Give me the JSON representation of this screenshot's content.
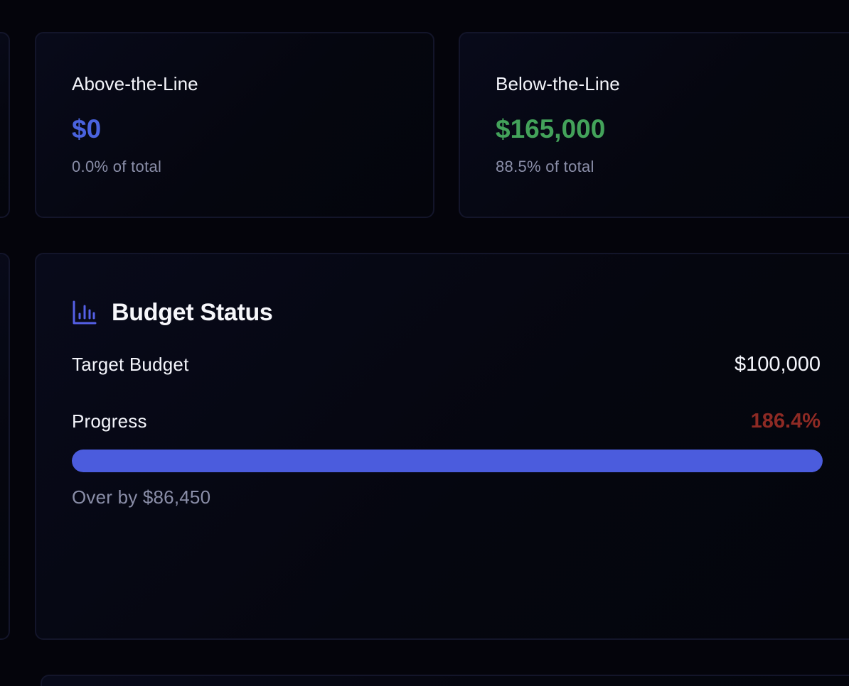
{
  "above_the_line": {
    "label": "Above-the-Line",
    "value": "$0",
    "share": "0.0% of total",
    "accent_color": "#4a63df"
  },
  "below_the_line": {
    "label": "Below-the-Line",
    "value": "$165,000",
    "share": "88.5% of total",
    "accent_color": "#43a25a"
  },
  "budget_status": {
    "icon": "bar-chart-icon",
    "title": "Budget Status",
    "target_label": "Target Budget",
    "target_value": "$100,000",
    "progress_label": "Progress",
    "progress_value": "186.4%",
    "progress_fill_percent": 100,
    "progress_color": "#4b5cdd",
    "over_text": "Over by $86,450"
  }
}
